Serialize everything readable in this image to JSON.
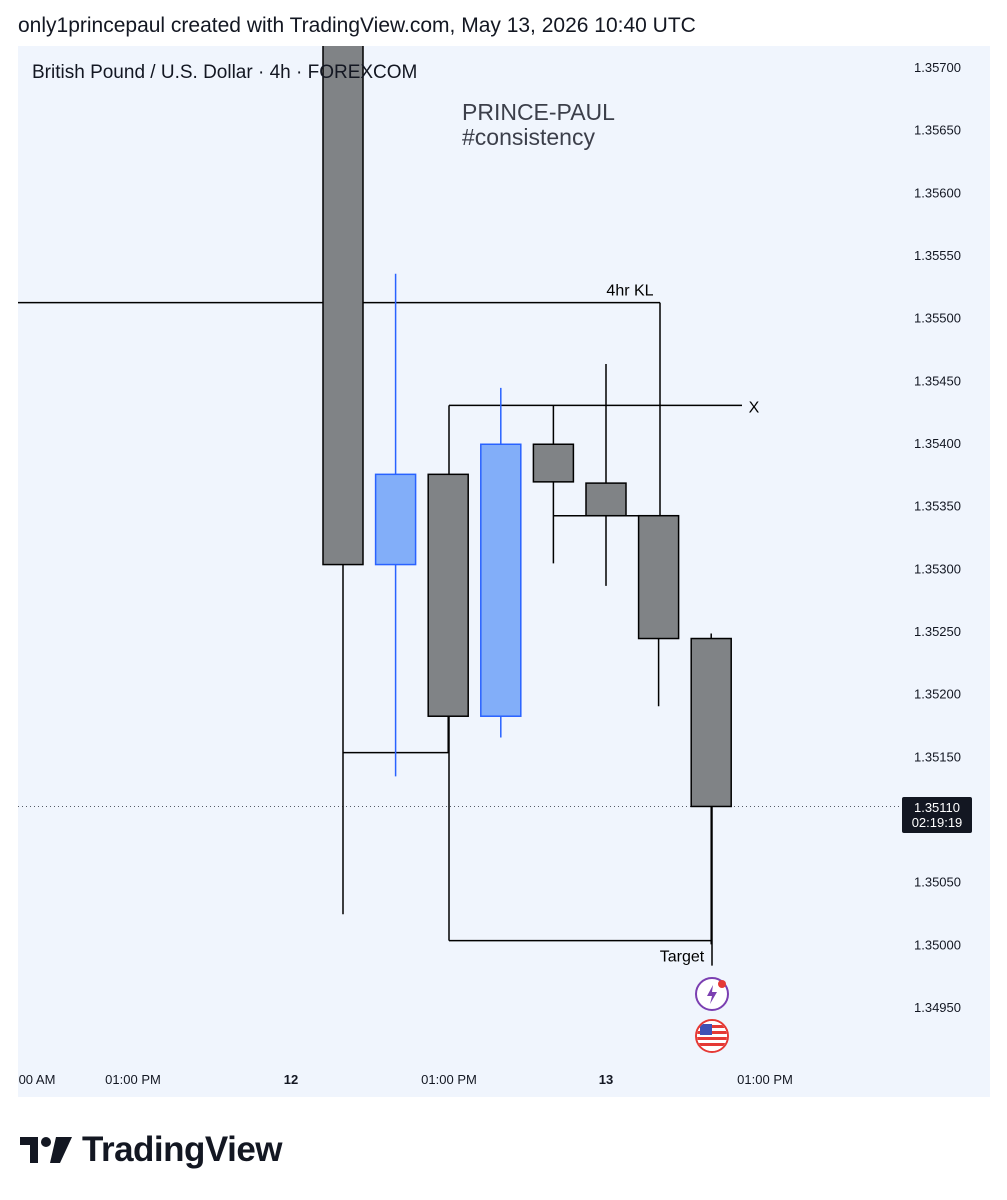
{
  "header": {
    "text": "only1princepaul created with TradingView.com, May 13, 2026 10:40 UTC"
  },
  "pane": {
    "title": "British Pound / U.S. Dollar · 4h · FOREXCOM"
  },
  "watermark": {
    "line1": "PRINCE-PAUL",
    "line2": "#consistency"
  },
  "price_badge": {
    "price": "1.35110",
    "countdown": "02:19:19"
  },
  "logo": {
    "text": "TradingView"
  },
  "events": [
    "lightning-icon",
    "us-flag-icon"
  ],
  "colors": {
    "bear": "#808386",
    "bull": "#82aef9",
    "bull_border": "#2962ff",
    "background": "#f0f5fd"
  },
  "chart_data": {
    "type": "candlestick",
    "symbol": "British Pound / U.S. Dollar",
    "interval": "4h",
    "exchange": "FOREXCOM",
    "ylim": [
      1.34915,
      1.35725
    ],
    "yticks": [
      "1.35700",
      "1.35650",
      "1.35600",
      "1.35550",
      "1.35500",
      "1.35450",
      "1.35400",
      "1.35350",
      "1.35300",
      "1.35250",
      "1.35200",
      "1.35150",
      "1.35050",
      "1.35000",
      "1.34950"
    ],
    "xticks": [
      "00 AM",
      "01:00 PM",
      "12",
      "01:00 PM",
      "13",
      "01:00 PM"
    ],
    "last_price": 1.3511,
    "candles": [
      {
        "o": 1.35725,
        "h": 1.35725,
        "l": 1.35024,
        "c": 1.35303
      },
      {
        "o": 1.35303,
        "h": 1.35535,
        "l": 1.35134,
        "c": 1.35375
      },
      {
        "o": 1.35375,
        "h": 1.35375,
        "l": 1.35153,
        "c": 1.35182
      },
      {
        "o": 1.35182,
        "h": 1.35444,
        "l": 1.35165,
        "c": 1.35399
      },
      {
        "o": 1.35399,
        "h": 1.3543,
        "l": 1.35304,
        "c": 1.35369
      },
      {
        "o": 1.35368,
        "h": 1.35463,
        "l": 1.35286,
        "c": 1.35342
      },
      {
        "o": 1.35342,
        "h": 1.35342,
        "l": 1.3519,
        "c": 1.35244
      },
      {
        "o": 1.35244,
        "h": 1.35248,
        "l": 1.35,
        "c": 1.3511
      }
    ],
    "annotations": [
      {
        "label": "4hr KL",
        "price": 1.35512
      },
      {
        "label": "X",
        "price": 1.3543
      },
      {
        "label": "Target",
        "price": 1.35003
      }
    ]
  }
}
